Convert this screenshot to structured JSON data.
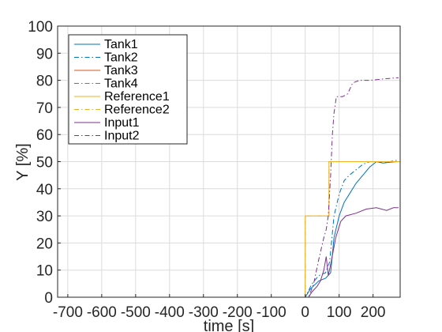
{
  "chart_data": {
    "type": "line",
    "xlabel": "time [s]",
    "ylabel": "Y [%]",
    "xlim": [
      -730,
      280
    ],
    "ylim": [
      0,
      100
    ],
    "xticks": [
      -700,
      -600,
      -500,
      -400,
      -300,
      -200,
      -100,
      0,
      100,
      200
    ],
    "yticks": [
      0,
      10,
      20,
      30,
      40,
      50,
      60,
      70,
      80,
      90,
      100
    ],
    "grid": true,
    "legend_position": "top-left",
    "series": [
      {
        "name": "Tank1",
        "color": "#0072bd",
        "dash": "solid",
        "points": [
          [
            -730,
            0
          ],
          [
            0,
            0
          ],
          [
            15,
            3
          ],
          [
            40,
            6
          ],
          [
            60,
            7
          ],
          [
            75,
            9
          ],
          [
            85,
            22
          ],
          [
            100,
            30
          ],
          [
            115,
            35
          ],
          [
            130,
            38
          ],
          [
            150,
            42
          ],
          [
            170,
            45
          ],
          [
            190,
            48
          ],
          [
            210,
            50
          ],
          [
            230,
            49.5
          ],
          [
            250,
            49.8
          ],
          [
            270,
            50
          ]
        ]
      },
      {
        "name": "Tank2",
        "color": "#0072bd",
        "dash": "dashdot",
        "points": [
          [
            -730,
            0
          ],
          [
            0,
            0
          ],
          [
            20,
            5
          ],
          [
            40,
            8
          ],
          [
            60,
            9
          ],
          [
            72,
            13
          ],
          [
            85,
            30
          ],
          [
            100,
            38
          ],
          [
            115,
            43
          ],
          [
            130,
            45
          ],
          [
            150,
            47
          ],
          [
            170,
            49
          ],
          [
            190,
            50
          ],
          [
            210,
            50
          ],
          [
            230,
            49.5
          ],
          [
            250,
            50
          ],
          [
            270,
            50.5
          ]
        ]
      },
      {
        "name": "Tank3",
        "color": "#d95319",
        "dash": "solid",
        "points": [
          [
            -730,
            0
          ],
          [
            280,
            0
          ]
        ]
      },
      {
        "name": "Tank4",
        "color": "#d95319",
        "dash": "dashdot",
        "points": [
          [
            -730,
            0
          ],
          [
            280,
            0
          ]
        ]
      },
      {
        "name": "Reference1",
        "color": "#edb120",
        "dash": "solid",
        "points": [
          [
            -730,
            0
          ],
          [
            0,
            0
          ],
          [
            0,
            30
          ],
          [
            70,
            30
          ],
          [
            70,
            50
          ],
          [
            280,
            50
          ]
        ]
      },
      {
        "name": "Reference2",
        "color": "#edb120",
        "dash": "dashdot",
        "points": [
          [
            -730,
            0
          ],
          [
            0,
            0
          ],
          [
            0,
            30
          ],
          [
            70,
            30
          ],
          [
            70,
            50
          ],
          [
            280,
            50
          ]
        ]
      },
      {
        "name": "Input1",
        "color": "#7e2f8e",
        "dash": "solid",
        "points": [
          [
            -730,
            0
          ],
          [
            10,
            0
          ],
          [
            20,
            2
          ],
          [
            35,
            4
          ],
          [
            45,
            6
          ],
          [
            55,
            10
          ],
          [
            62,
            15
          ],
          [
            68,
            8
          ],
          [
            75,
            12
          ],
          [
            90,
            22
          ],
          [
            105,
            28
          ],
          [
            120,
            30
          ],
          [
            150,
            31
          ],
          [
            180,
            32.5
          ],
          [
            210,
            33
          ],
          [
            240,
            32
          ],
          [
            260,
            33
          ],
          [
            275,
            33
          ]
        ]
      },
      {
        "name": "Input2",
        "color": "#7e2f8e",
        "dash": "dashdot",
        "points": [
          [
            -730,
            0
          ],
          [
            10,
            0
          ],
          [
            25,
            5
          ],
          [
            40,
            14
          ],
          [
            55,
            22
          ],
          [
            62,
            25
          ],
          [
            68,
            30
          ],
          [
            75,
            45
          ],
          [
            80,
            60
          ],
          [
            85,
            68
          ],
          [
            92,
            74
          ],
          [
            110,
            74
          ],
          [
            125,
            75
          ],
          [
            140,
            79
          ],
          [
            160,
            80
          ],
          [
            190,
            80
          ],
          [
            230,
            80.5
          ],
          [
            275,
            81
          ]
        ]
      }
    ]
  }
}
